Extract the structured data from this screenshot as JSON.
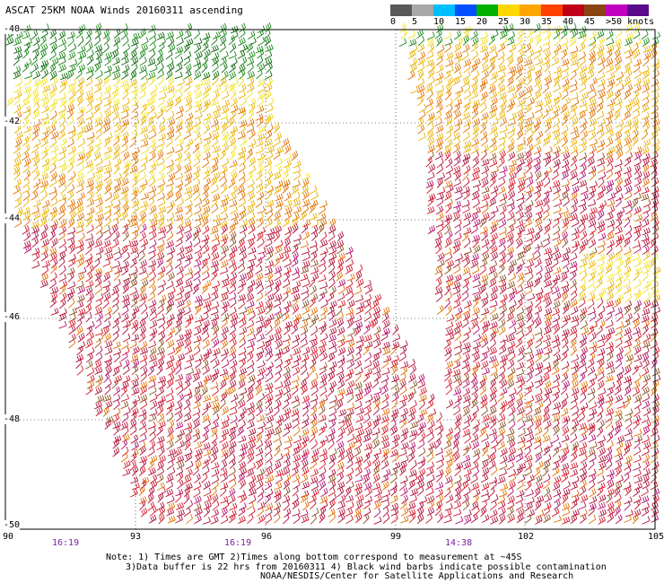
{
  "title": "ASCAT 25KM NOAA Winds 20160311 ascending",
  "legend": {
    "labels": [
      "0",
      "5",
      "10",
      "15",
      "20",
      "25",
      "30",
      "35",
      "40",
      "45",
      ">50 knots"
    ],
    "colors": [
      "#595959",
      "#a8a8a8",
      "#00bfff",
      "#0050ff",
      "#00b000",
      "#ffd700",
      "#ffa500",
      "#ff4000",
      "#c00018",
      "#8b4513",
      "#c000c0",
      "#5a0a8a"
    ]
  },
  "axes": {
    "lat_labels": [
      "-40",
      "-42",
      "-44",
      "-46",
      "-48",
      "-50"
    ],
    "lon_labels": [
      "90",
      "93",
      "96",
      "99",
      "102",
      "105"
    ]
  },
  "times": [
    "16:19",
    "16:19",
    "14:38"
  ],
  "notes": {
    "line1": "Note: 1) Times are GMT 2)Times along bottom correspond to measurement at ~45S",
    "line2": "3)Data buffer is 22 hrs from 20160311 4) Black wind barbs indicate possible contamination",
    "line3": "NOAA/NESDIS/Center for Satellite Applications and Research"
  },
  "palette": {
    "green": "#1a8a1a",
    "darkgreen": "#0a6a0a",
    "yellow": "#f0e020",
    "gold": "#e8b000",
    "orange": "#e07000",
    "red": "#d01828",
    "crimson": "#b0103a",
    "brown": "#8a5020",
    "magenta": "#b01070"
  }
}
